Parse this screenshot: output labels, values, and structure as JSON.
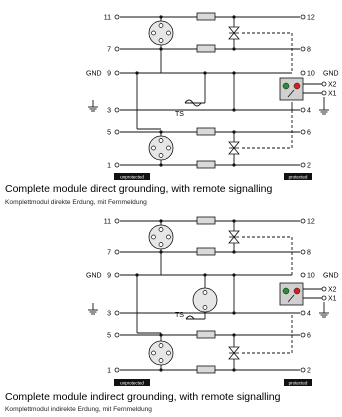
{
  "top": {
    "pins_left": [
      "11",
      "7",
      "9",
      "3",
      "5",
      "1"
    ],
    "pins_right": [
      "12",
      "8",
      "10",
      "4",
      "6",
      "2"
    ],
    "gnd_left": "GND",
    "gnd_right": "GND",
    "remote_x2": "X2",
    "remote_x1": "X1",
    "ts_label": "TS",
    "tag_unprotected": "unprotected",
    "tag_protected": "protected",
    "caption": "Complete module direct grounding, with remote signalling",
    "caption_de": "Komplettmodul direkte Erdung, mit Fernmeldung"
  },
  "bottom": {
    "pins_left": [
      "11",
      "7",
      "9",
      "3",
      "5",
      "1"
    ],
    "pins_right": [
      "12",
      "8",
      "10",
      "4",
      "6",
      "2"
    ],
    "gnd_left": "GND",
    "gnd_right": "GND",
    "remote_x2": "X2",
    "remote_x1": "X1",
    "ts_label": "TS",
    "tag_unprotected": "unprotected",
    "tag_protected": "protected",
    "caption": "Complete module indirect grounding, with remote signalling",
    "caption_de": "Komplettmodul indirekte Erdung, mit Fernmeldung"
  },
  "colors": {
    "line": "#111111",
    "resistor_fill": "#d9d9d9",
    "module_fill": "#d0d0d0",
    "gdt_fill": "#e6e6e6",
    "led_ok": "#2e8b3a",
    "led_fault": "#d42020",
    "tag_bg": "#111111",
    "tag_text": "#ffffff"
  },
  "icons": [
    "ground-icon",
    "gas-discharge-tube-icon",
    "tvs-diode-icon",
    "resistor-icon",
    "status-led-icon",
    "thermal-switch-icon"
  ]
}
